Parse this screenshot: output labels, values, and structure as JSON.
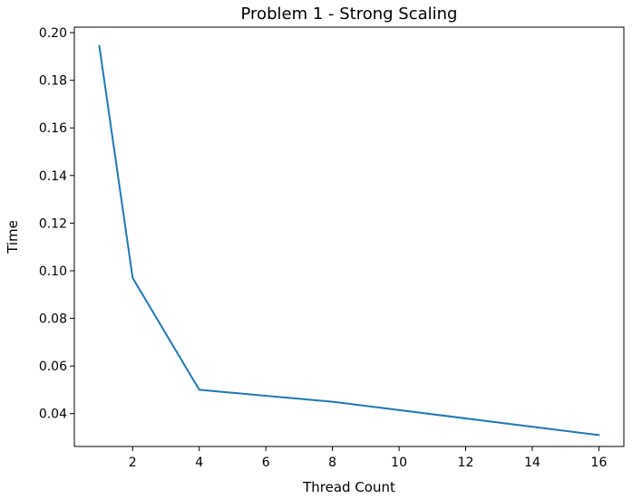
{
  "chart_data": {
    "type": "line",
    "title": "Problem 1 - Strong Scaling",
    "xlabel": "Thread Count",
    "ylabel": "Time",
    "series": [
      {
        "x": [
          1,
          2,
          4,
          8,
          16
        ],
        "values": [
          0.1945,
          0.097,
          0.05,
          0.045,
          0.031
        ],
        "color": "#1f77b4"
      }
    ],
    "xlim": [
      0.25,
      16.75
    ],
    "ylim": [
      0.0262,
      0.2023
    ],
    "xticks": [
      2,
      4,
      6,
      8,
      10,
      12,
      14,
      16
    ],
    "xtick_labels": [
      "2",
      "4",
      "6",
      "8",
      "10",
      "12",
      "14",
      "16"
    ],
    "yticks": [
      0.04,
      0.06,
      0.08,
      0.1,
      0.12,
      0.14,
      0.16,
      0.18,
      0.2
    ],
    "ytick_labels": [
      "0.04",
      "0.06",
      "0.08",
      "0.10",
      "0.12",
      "0.14",
      "0.16",
      "0.18",
      "0.20"
    ],
    "grid": false,
    "legend": false
  }
}
